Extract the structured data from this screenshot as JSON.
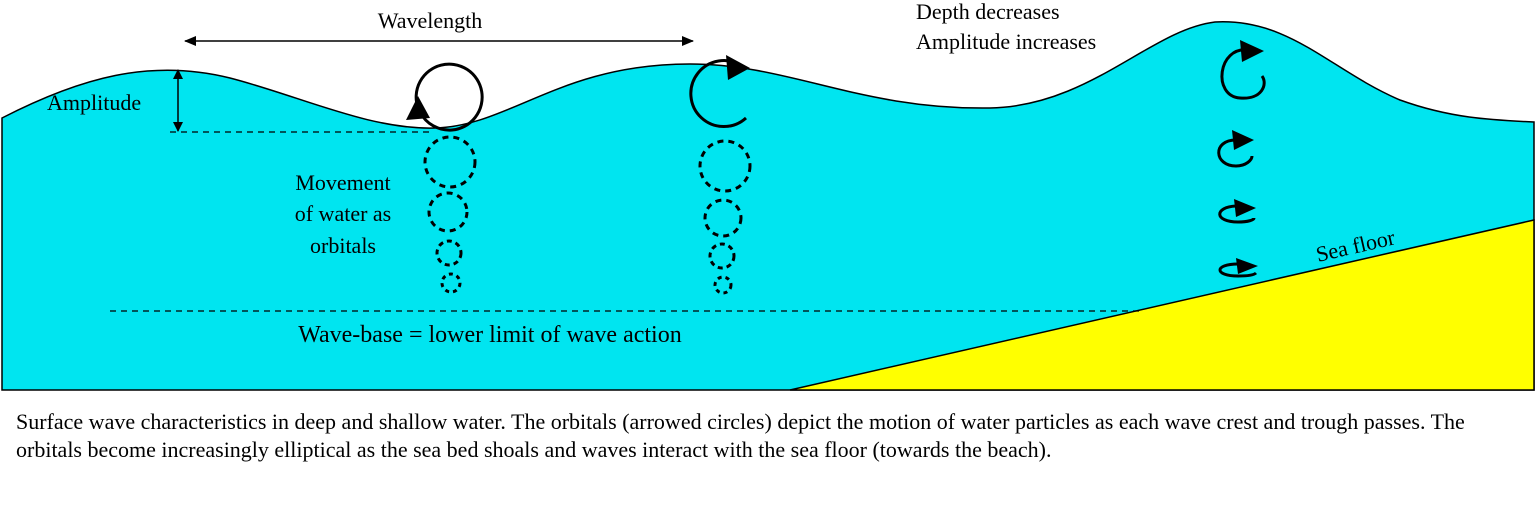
{
  "colors": {
    "water": "#00e5f0",
    "sea_floor": "#ffff00",
    "line": "#000000"
  },
  "labels": {
    "wavelength": "Wavelength",
    "amplitude": "Amplitude",
    "depth_note_line1": "Depth decreases",
    "depth_note_line2": "Amplitude increases",
    "orbitals_line1": "Movement",
    "orbitals_line2": "of water as",
    "orbitals_line3": "orbitals",
    "sea_floor": "Sea floor",
    "wave_base": "Wave-base = lower limit of wave action"
  },
  "caption": "Surface wave characteristics in deep and shallow water. The orbitals (arrowed circles) depict the motion of water particles as each wave crest and trough passes. The orbitals become increasingly elliptical as the sea bed shoals and waves interact with the sea floor (towards the beach)."
}
